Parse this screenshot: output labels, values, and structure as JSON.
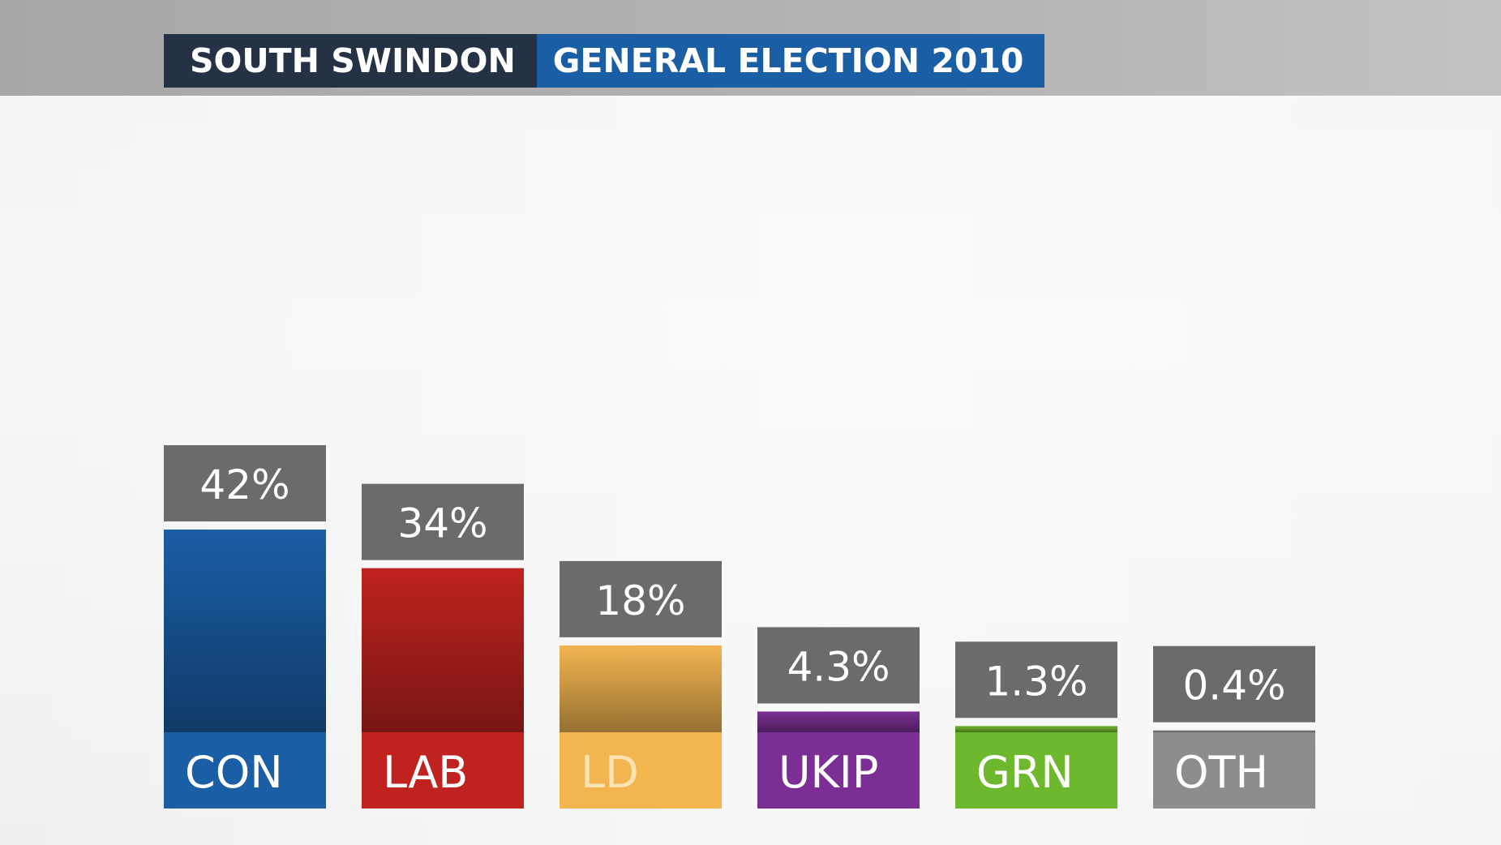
{
  "header": {
    "constituency": "SOUTH SWINDON",
    "election": "GENERAL ELECTION 2010"
  },
  "colors": {
    "label_box": "#6b6b6b",
    "header_dark": "#253246",
    "header_blue": "#1a5ea6"
  },
  "chart_data": {
    "type": "bar",
    "title": "SOUTH SWINDON GENERAL ELECTION 2010",
    "categories": [
      "CON",
      "LAB",
      "LD",
      "UKIP",
      "GRN",
      "OTH"
    ],
    "values": [
      42,
      34,
      18,
      4.3,
      1.3,
      0.4
    ],
    "labels": [
      "42%",
      "34%",
      "18%",
      "4.3%",
      "1.3%",
      "0.4%"
    ],
    "colors": [
      "#1a5ea6",
      "#c0231f",
      "#f2b550",
      "#7b2f94",
      "#6eb82e",
      "#8d8d8d"
    ],
    "ylim": [
      0,
      42
    ],
    "grid": false,
    "legend": "none"
  }
}
